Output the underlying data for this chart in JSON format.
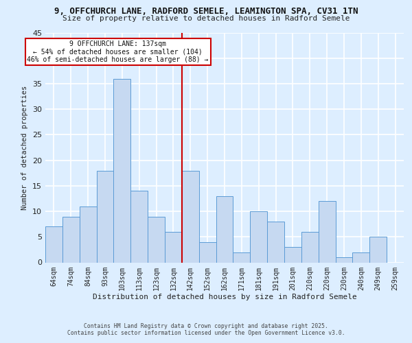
{
  "title_line1": "9, OFFCHURCH LANE, RADFORD SEMELE, LEAMINGTON SPA, CV31 1TN",
  "title_line2": "Size of property relative to detached houses in Radford Semele",
  "xlabel": "Distribution of detached houses by size in Radford Semele",
  "ylabel": "Number of detached properties",
  "bar_labels": [
    "64sqm",
    "74sqm",
    "84sqm",
    "93sqm",
    "103sqm",
    "113sqm",
    "123sqm",
    "132sqm",
    "142sqm",
    "152sqm",
    "162sqm",
    "171sqm",
    "181sqm",
    "191sqm",
    "201sqm",
    "210sqm",
    "220sqm",
    "230sqm",
    "240sqm",
    "249sqm",
    "259sqm"
  ],
  "bar_values": [
    7,
    9,
    11,
    18,
    36,
    14,
    9,
    6,
    18,
    4,
    13,
    2,
    10,
    8,
    3,
    6,
    12,
    1,
    2,
    5,
    0
  ],
  "bar_color": "#c6d9f1",
  "bar_edge_color": "#5b9bd5",
  "background_color": "#ddeeff",
  "grid_color": "#ffffff",
  "annotation_text": "9 OFFCHURCH LANE: 137sqm\n← 54% of detached houses are smaller (104)\n46% of semi-detached houses are larger (88) →",
  "vline_color": "#cc0000",
  "annotation_box_color": "#ffffff",
  "annotation_box_edge": "#cc0000",
  "ylim": [
    0,
    45
  ],
  "yticks": [
    0,
    5,
    10,
    15,
    20,
    25,
    30,
    35,
    40,
    45
  ],
  "footer_line1": "Contains HM Land Registry data © Crown copyright and database right 2025.",
  "footer_line2": "Contains public sector information licensed under the Open Government Licence v3.0."
}
